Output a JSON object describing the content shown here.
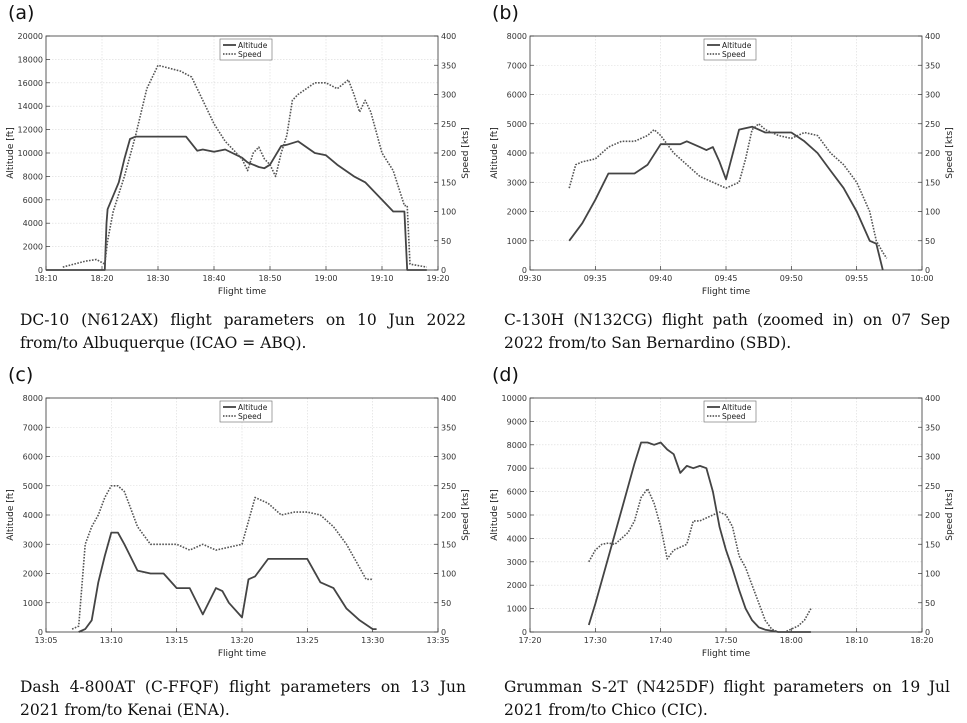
{
  "chart_data": [
    {
      "panel": "(a)",
      "type": "line",
      "xlabel": "Flight time",
      "ylabel": "Altitude [ft]",
      "y2label": "Speed [kts]",
      "xticks": [
        "18:10",
        "18:20",
        "18:30",
        "18:40",
        "18:50",
        "19:00",
        "19:10",
        "19:20"
      ],
      "xlim": [
        0,
        70
      ],
      "ylim": [
        0,
        20000
      ],
      "y2lim": [
        0,
        400
      ],
      "yticks": [
        0,
        2000,
        4000,
        6000,
        8000,
        10000,
        12000,
        14000,
        16000,
        18000,
        20000
      ],
      "y2ticks": [
        0,
        50,
        100,
        150,
        200,
        250,
        300,
        350,
        400
      ],
      "legend": [
        "Altitude",
        "Speed"
      ],
      "legend_position": "top-center",
      "grid": true,
      "caption": "DC-10 (N612AX) flight parameters on 10 Jun 2022 from/to Albuquerque (ICAO = ABQ).",
      "series": [
        {
          "name": "Altitude",
          "axis": "left",
          "style": "solid",
          "x": [
            0,
            10.5,
            10.8,
            11,
            13,
            14,
            15,
            16,
            18,
            20,
            25,
            27,
            28,
            30,
            32,
            35,
            36,
            38,
            39,
            40,
            41,
            42,
            43,
            45,
            48,
            50,
            52,
            55,
            57,
            60,
            62,
            64,
            64.5,
            65,
            68
          ],
          "y": [
            0,
            0,
            4000,
            5200,
            7500,
            9500,
            11200,
            11400,
            11400,
            11400,
            11400,
            10200,
            10300,
            10100,
            10300,
            9600,
            9200,
            8800,
            8700,
            9000,
            9800,
            10600,
            10700,
            11000,
            10000,
            9800,
            9000,
            8000,
            7500,
            6000,
            5000,
            5000,
            0,
            0,
            0
          ]
        },
        {
          "name": "Speed",
          "axis": "right",
          "style": "dotted",
          "x": [
            3,
            5,
            7,
            9,
            10.5,
            11,
            12,
            14,
            16,
            18,
            20,
            22,
            24,
            26,
            28,
            30,
            32,
            34,
            35,
            36,
            37,
            38,
            39,
            40,
            41,
            42,
            43,
            44,
            45,
            48,
            50,
            52,
            54,
            55,
            56,
            57,
            58,
            60,
            62,
            64,
            64.5,
            65,
            68
          ],
          "y": [
            5,
            10,
            15,
            18,
            10,
            50,
            100,
            160,
            230,
            310,
            350,
            345,
            340,
            330,
            290,
            250,
            220,
            200,
            190,
            170,
            200,
            210,
            190,
            180,
            160,
            200,
            230,
            290,
            300,
            320,
            320,
            310,
            325,
            300,
            270,
            290,
            270,
            200,
            170,
            110,
            110,
            10,
            5
          ]
        }
      ]
    },
    {
      "panel": "(b)",
      "type": "line",
      "xlabel": "Flight time",
      "ylabel": "Altitude [ft]",
      "y2label": "Speed [kts]",
      "xticks": [
        "09:30",
        "09:35",
        "09:40",
        "09:45",
        "09:50",
        "09:55",
        "10:00"
      ],
      "xlim": [
        0,
        30
      ],
      "ylim": [
        0,
        8000
      ],
      "y2lim": [
        0,
        400
      ],
      "yticks": [
        0,
        1000,
        2000,
        3000,
        4000,
        5000,
        6000,
        7000,
        8000
      ],
      "y2ticks": [
        0,
        50,
        100,
        150,
        200,
        250,
        300,
        350,
        400
      ],
      "legend": [
        "Altitude",
        "Speed"
      ],
      "legend_position": "top-center",
      "grid": true,
      "caption": "C-130H (N132CG) flight path (zoomed in) on 07 Sep 2022 from/to San Bernardino (SBD).",
      "series": [
        {
          "name": "Altitude",
          "axis": "left",
          "style": "solid",
          "x": [
            3,
            4,
            5,
            6,
            7,
            8,
            9,
            10,
            11,
            11.5,
            12,
            13,
            13.5,
            14,
            14.5,
            15,
            16,
            17,
            17.5,
            18,
            19,
            20,
            21,
            22,
            23,
            24,
            25,
            26,
            26.5,
            27
          ],
          "y": [
            1000,
            1600,
            2400,
            3300,
            3300,
            3300,
            3600,
            4300,
            4300,
            4300,
            4400,
            4200,
            4100,
            4200,
            3700,
            3100,
            4800,
            4900,
            4800,
            4700,
            4700,
            4700,
            4400,
            4000,
            3400,
            2800,
            2000,
            1000,
            900,
            0
          ]
        },
        {
          "name": "Speed",
          "axis": "right",
          "style": "dotted",
          "x": [
            3,
            3.5,
            4,
            5,
            6,
            7,
            8,
            9,
            9.5,
            10,
            11,
            12,
            13,
            14,
            15,
            16,
            16.5,
            17,
            17.5,
            18,
            19,
            20,
            21,
            22,
            23,
            24,
            25,
            26,
            26.5,
            27,
            27.3
          ],
          "y": [
            140,
            180,
            185,
            190,
            210,
            220,
            220,
            230,
            240,
            230,
            200,
            180,
            160,
            150,
            140,
            150,
            190,
            240,
            250,
            240,
            230,
            225,
            235,
            230,
            200,
            180,
            150,
            100,
            50,
            30,
            20
          ]
        }
      ]
    },
    {
      "panel": "(c)",
      "type": "line",
      "xlabel": "Flight time",
      "ylabel": "Altitude [ft]",
      "y2label": "Speed [kts]",
      "xticks": [
        "13:05",
        "13:10",
        "13:15",
        "13:20",
        "13:25",
        "13:30",
        "13:35"
      ],
      "xlim": [
        0,
        30
      ],
      "ylim": [
        0,
        8000
      ],
      "y2lim": [
        0,
        400
      ],
      "yticks": [
        0,
        1000,
        2000,
        3000,
        4000,
        5000,
        6000,
        7000,
        8000
      ],
      "y2ticks": [
        0,
        50,
        100,
        150,
        200,
        250,
        300,
        350,
        400
      ],
      "legend": [
        "Altitude",
        "Speed"
      ],
      "legend_position": "top-center",
      "grid": true,
      "caption": "Dash 4-800AT (C-FFQF) flight parameters on 13 Jun 2021 from/to Kenai (ENA).",
      "series": [
        {
          "name": "Altitude",
          "axis": "left",
          "style": "solid",
          "x": [
            2.5,
            3,
            3.5,
            4,
            4.5,
            5,
            5.5,
            6,
            7,
            8,
            9,
            10,
            11,
            12,
            13,
            13.5,
            14,
            15,
            15.5,
            16,
            17,
            18,
            19,
            19.5,
            20,
            21,
            22,
            23,
            23.5,
            24,
            25,
            25.3
          ],
          "y": [
            0,
            100,
            400,
            1700,
            2600,
            3400,
            3400,
            3000,
            2100,
            2000,
            2000,
            1500,
            1500,
            600,
            1500,
            1400,
            1000,
            500,
            1800,
            1900,
            2500,
            2500,
            2500,
            2500,
            2500,
            1700,
            1500,
            800,
            600,
            400,
            100,
            100
          ]
        },
        {
          "name": "Speed",
          "axis": "right",
          "style": "dotted",
          "x": [
            2,
            2.5,
            3,
            3.5,
            4,
            4.5,
            5,
            5.5,
            6,
            7,
            8,
            9,
            10,
            11,
            12,
            13,
            14,
            15,
            16,
            17,
            18,
            19,
            20,
            21,
            22,
            23,
            24,
            24.5,
            25
          ],
          "y": [
            5,
            10,
            150,
            180,
            200,
            230,
            250,
            250,
            240,
            180,
            150,
            150,
            150,
            140,
            150,
            140,
            145,
            150,
            230,
            220,
            200,
            205,
            205,
            200,
            180,
            150,
            110,
            90,
            90
          ]
        }
      ]
    },
    {
      "panel": "(d)",
      "type": "line",
      "xlabel": "Flight time",
      "ylabel": "Altitude [ft]",
      "y2label": "Speed [kts]",
      "xticks": [
        "17:20",
        "17:30",
        "17:40",
        "17:50",
        "18:00",
        "18:10",
        "18:20"
      ],
      "xlim": [
        0,
        60
      ],
      "ylim": [
        0,
        10000
      ],
      "y2lim": [
        0,
        400
      ],
      "yticks": [
        0,
        1000,
        2000,
        3000,
        4000,
        5000,
        6000,
        7000,
        8000,
        9000,
        10000
      ],
      "y2ticks": [
        0,
        50,
        100,
        150,
        200,
        250,
        300,
        350,
        400
      ],
      "legend": [
        "Altitude",
        "Speed"
      ],
      "legend_position": "top-center",
      "grid": true,
      "caption": "Grumman S-2T (N425DF) flight parameters on 19 Jul 2021 from/to Chico (CIC).",
      "series": [
        {
          "name": "Altitude",
          "axis": "left",
          "style": "solid",
          "x": [
            9,
            10,
            12,
            14,
            16,
            17,
            18,
            19,
            20,
            21,
            22,
            23,
            24,
            25,
            26,
            27,
            28,
            29,
            30,
            31,
            32,
            33,
            34,
            35,
            36,
            37,
            38,
            39,
            40,
            41,
            42,
            43
          ],
          "y": [
            300,
            1200,
            3200,
            5200,
            7200,
            8100,
            8100,
            8000,
            8100,
            7800,
            7600,
            6800,
            7100,
            7000,
            7100,
            7000,
            6000,
            4500,
            3500,
            2700,
            1800,
            1000,
            500,
            200,
            100,
            50,
            0,
            0,
            0,
            0,
            0,
            0
          ]
        },
        {
          "name": "Speed",
          "axis": "right",
          "style": "dotted",
          "x": [
            9,
            10,
            11,
            12,
            13,
            14,
            15,
            16,
            17,
            18,
            19,
            20,
            21,
            22,
            23,
            24,
            25,
            26,
            27,
            28,
            29,
            30,
            31,
            32,
            33,
            34,
            35,
            36,
            37,
            38,
            39,
            40,
            41,
            42,
            43
          ],
          "y": [
            120,
            140,
            150,
            152,
            150,
            160,
            170,
            190,
            230,
            245,
            220,
            180,
            125,
            140,
            145,
            150,
            190,
            190,
            195,
            200,
            205,
            200,
            180,
            130,
            110,
            80,
            50,
            20,
            5,
            0,
            0,
            5,
            10,
            20,
            40
          ]
        }
      ]
    }
  ]
}
